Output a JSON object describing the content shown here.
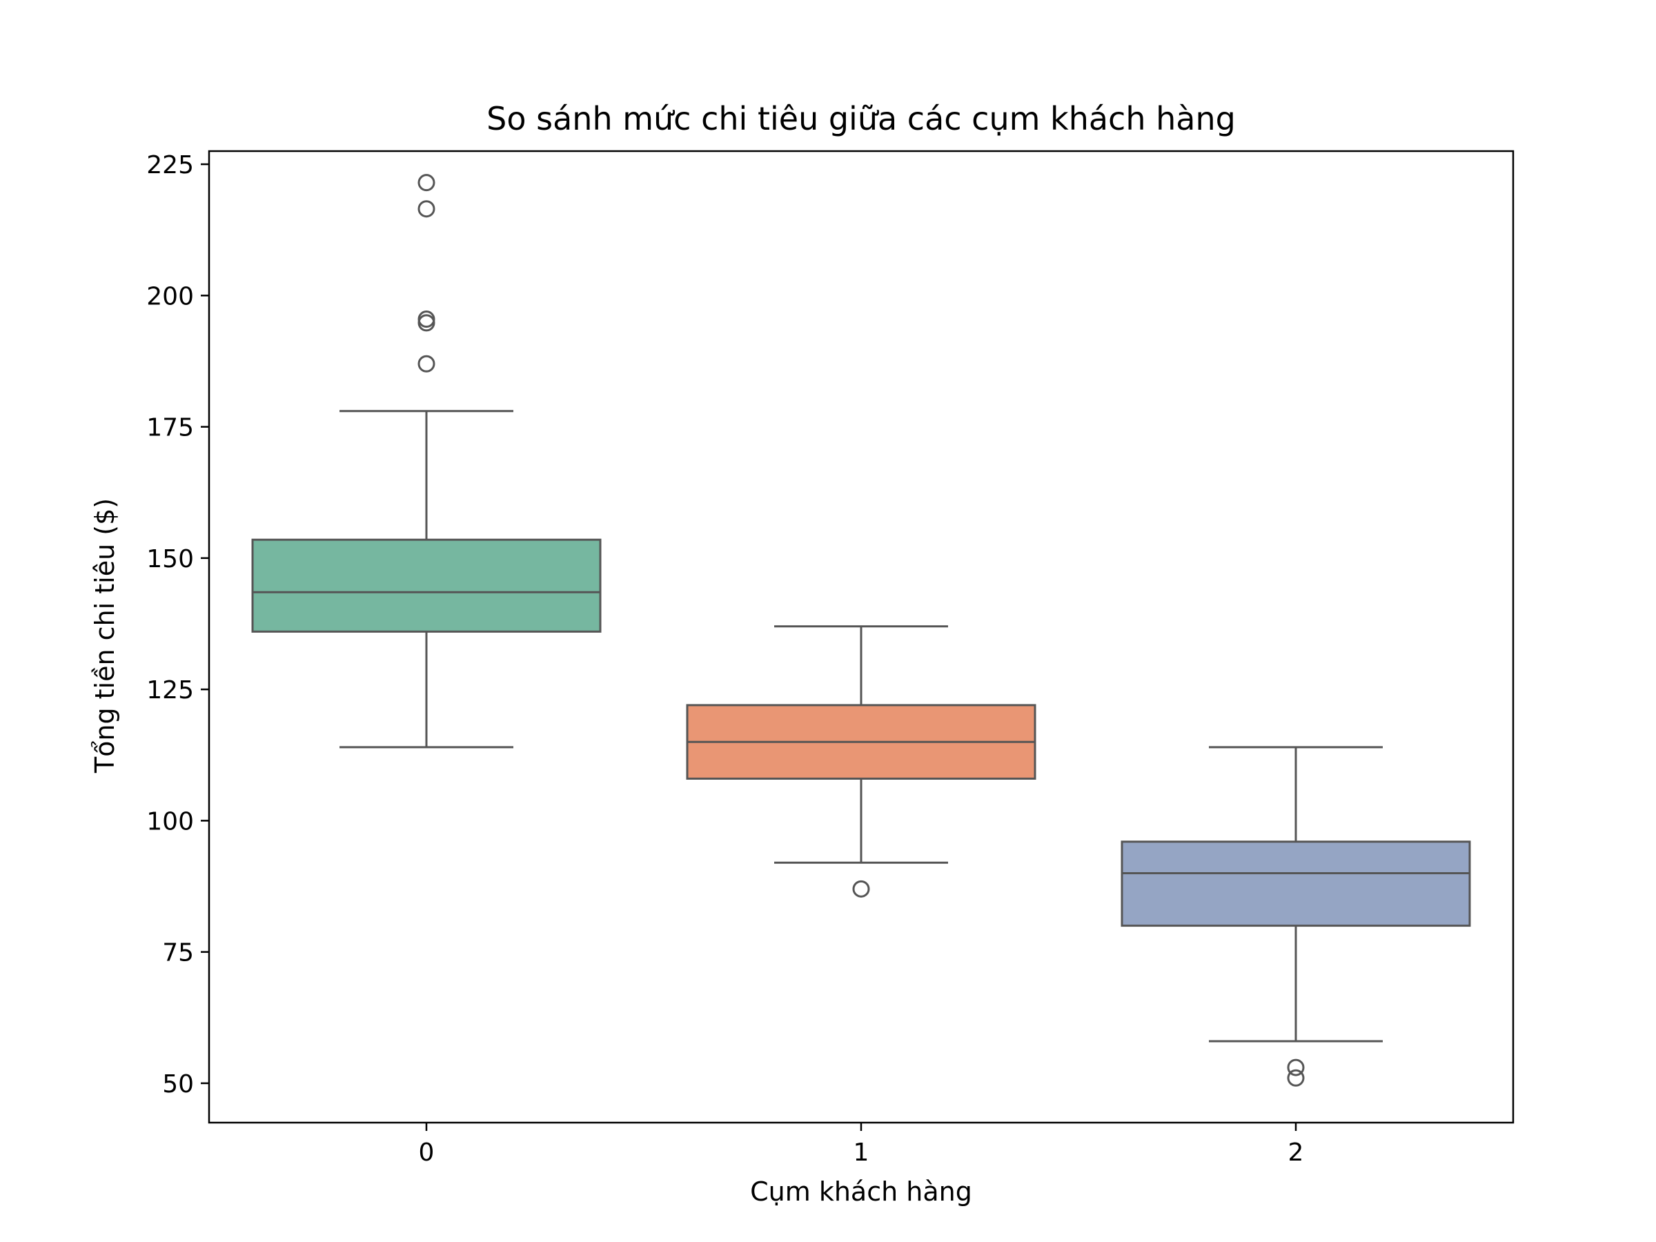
{
  "chart_data": {
    "type": "box",
    "title": "So sánh mức chi tiêu giữa các cụm khách hàng",
    "xlabel": "Cụm khách hàng",
    "ylabel": "Tổng tiền chi tiêu ($)",
    "ylim": [
      42.5,
      227.5
    ],
    "yticks": [
      50,
      75,
      100,
      125,
      150,
      175,
      200,
      225
    ],
    "categories": [
      "0",
      "1",
      "2"
    ],
    "grid": false,
    "legend": "none",
    "boxes": [
      {
        "category": "0",
        "color": "#76b7a0",
        "whisker_low": 114,
        "q1": 136,
        "median": 143.5,
        "q3": 153.5,
        "whisker_high": 178,
        "outliers": [
          221.5,
          216.5,
          195.5,
          194.8,
          187
        ]
      },
      {
        "category": "1",
        "color": "#e99674",
        "whisker_low": 92,
        "q1": 108,
        "median": 115,
        "q3": 122,
        "whisker_high": 137,
        "outliers": [
          87
        ]
      },
      {
        "category": "2",
        "color": "#95a5c4",
        "whisker_low": 58,
        "q1": 80,
        "median": 90,
        "q3": 96,
        "whisker_high": 114,
        "outliers": [
          53,
          51
        ]
      }
    ],
    "line_color": "#555555"
  }
}
